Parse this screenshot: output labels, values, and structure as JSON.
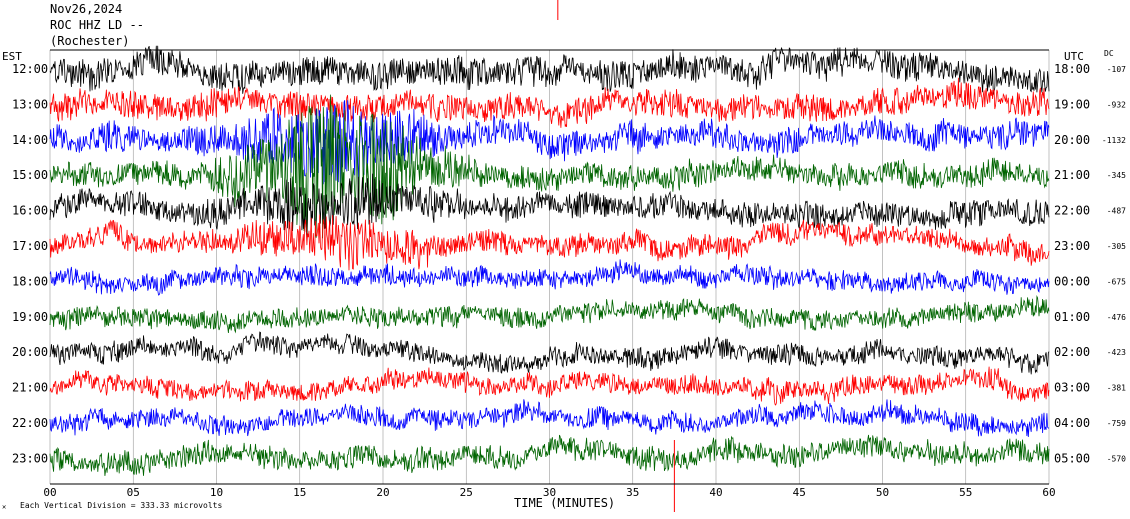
{
  "header": {
    "date": "Nov26,2024",
    "station": "ROC HHZ LD --",
    "location": "(Rochester)"
  },
  "chart_data": {
    "type": "line",
    "title": "",
    "xlabel": "TIME (MINUTES)",
    "x_ticks": [
      "00",
      "05",
      "10",
      "15",
      "20",
      "25",
      "30",
      "35",
      "40",
      "45",
      "50",
      "55",
      "60"
    ],
    "xlim": [
      0,
      60
    ],
    "left_axis_label": "EST",
    "right_axis_label": "UTC",
    "dc_label": "DC",
    "footer": "Each Vertical Division = 333.33 microvolts",
    "trace_colors": [
      "#000000",
      "#ff0000",
      "#0000ff",
      "#006400"
    ],
    "rows": [
      {
        "est": "12:00",
        "utc": "18:00",
        "dc": "-107",
        "color": "#000000",
        "amp": 1.2
      },
      {
        "est": "13:00",
        "utc": "19:00",
        "dc": "-932",
        "color": "#ff0000",
        "amp": 1.1
      },
      {
        "est": "14:00",
        "utc": "20:00",
        "dc": "-1132",
        "color": "#0000ff",
        "amp": 1.1
      },
      {
        "est": "15:00",
        "utc": "21:00",
        "dc": "-345",
        "color": "#006400",
        "amp": 1.0
      },
      {
        "est": "16:00",
        "utc": "22:00",
        "dc": "-487",
        "color": "#000000",
        "amp": 1.0
      },
      {
        "est": "17:00",
        "utc": "23:00",
        "dc": "-305",
        "color": "#ff0000",
        "amp": 0.9
      },
      {
        "est": "18:00",
        "utc": "00:00",
        "dc": "-675",
        "color": "#0000ff",
        "amp": 0.8
      },
      {
        "est": "19:00",
        "utc": "01:00",
        "dc": "-476",
        "color": "#006400",
        "amp": 0.8
      },
      {
        "est": "20:00",
        "utc": "02:00",
        "dc": "-423",
        "color": "#000000",
        "amp": 0.8
      },
      {
        "est": "21:00",
        "utc": "03:00",
        "dc": "-381",
        "color": "#ff0000",
        "amp": 0.8
      },
      {
        "est": "22:00",
        "utc": "04:00",
        "dc": "-759",
        "color": "#0000ff",
        "amp": 0.8
      },
      {
        "est": "23:00",
        "utc": "05:00",
        "dc": "-570",
        "color": "#006400",
        "amp": 0.9
      }
    ],
    "event": {
      "row_start": 2,
      "row_end": 5,
      "minute_start": 9,
      "minute_end": 25
    },
    "markers": [
      {
        "minute": 30.5,
        "color": "#ff0000"
      },
      {
        "minute": 37.5,
        "color": "#ff0000"
      }
    ]
  }
}
